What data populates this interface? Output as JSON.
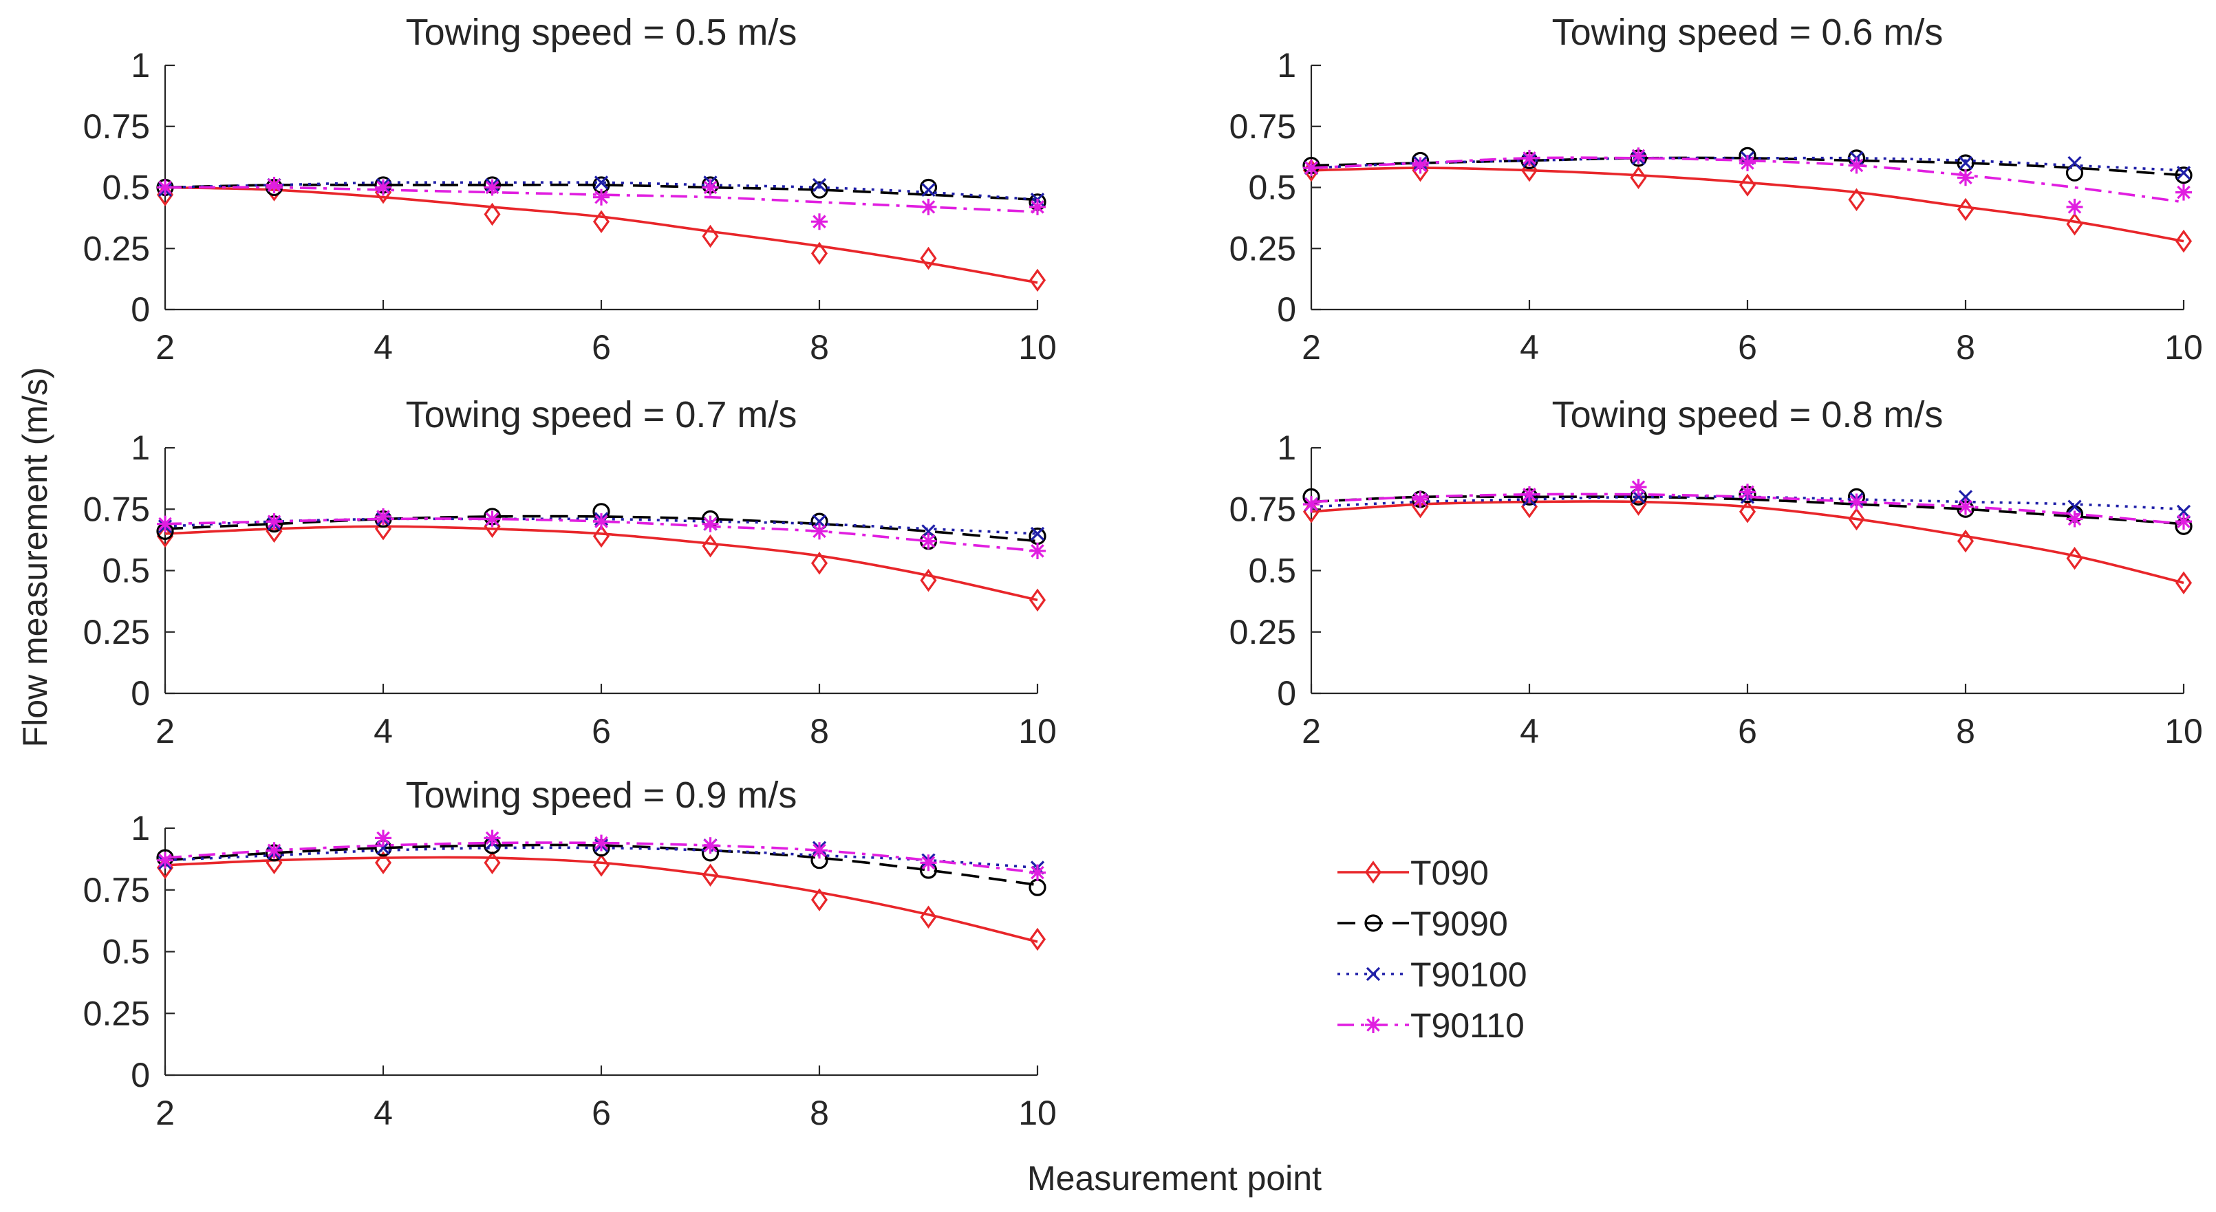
{
  "figure": {
    "ylabel": "Flow measurement (m/s)",
    "xlabel": "Measurement point"
  },
  "series_styles": [
    {
      "name": "T090",
      "color": "#e8262a",
      "dash": "",
      "marker": "diamond"
    },
    {
      "name": "T9090",
      "color": "#000000",
      "dash": "26 14",
      "marker": "circle"
    },
    {
      "name": "T90100",
      "color": "#1f1fa8",
      "dash": "4 9",
      "marker": "x"
    },
    {
      "name": "T90110",
      "color": "#e01ee0",
      "dash": "24 10 5 10",
      "marker": "star"
    }
  ],
  "legend": {
    "position": "lower-right",
    "entries": [
      "T090",
      "T9090",
      "T90100",
      "T90110"
    ]
  },
  "chart_data": [
    {
      "type": "line",
      "title": "Towing speed = 0.5 m/s",
      "x": [
        2,
        3,
        4,
        5,
        6,
        7,
        8,
        9,
        10
      ],
      "xlim": [
        2,
        10
      ],
      "ylim": [
        0,
        1
      ],
      "xticks": [
        "2",
        "4",
        "6",
        "8",
        "10"
      ],
      "yticks": [
        "0",
        "0.25",
        "0.5",
        "0.75",
        "1"
      ],
      "series": [
        {
          "name": "T090",
          "values": [
            0.47,
            0.49,
            0.48,
            0.39,
            0.36,
            0.3,
            0.23,
            0.21,
            0.12
          ],
          "fit": [
            0.5,
            0.49,
            0.46,
            0.42,
            0.38,
            0.32,
            0.26,
            0.19,
            0.11
          ]
        },
        {
          "name": "T9090",
          "values": [
            0.5,
            0.5,
            0.51,
            0.51,
            0.51,
            0.51,
            0.49,
            0.5,
            0.44
          ],
          "fit": [
            0.5,
            0.51,
            0.51,
            0.51,
            0.51,
            0.5,
            0.49,
            0.47,
            0.45
          ]
        },
        {
          "name": "T90100",
          "values": [
            0.49,
            0.51,
            0.51,
            0.51,
            0.52,
            0.52,
            0.51,
            0.49,
            0.45
          ],
          "fit": [
            0.5,
            0.51,
            0.52,
            0.52,
            0.52,
            0.51,
            0.5,
            0.48,
            0.45
          ]
        },
        {
          "name": "T90110",
          "values": [
            0.5,
            0.51,
            0.5,
            0.5,
            0.46,
            0.5,
            0.36,
            0.42,
            0.42
          ],
          "fit": [
            0.5,
            0.5,
            0.49,
            0.48,
            0.47,
            0.46,
            0.44,
            0.42,
            0.4
          ]
        }
      ]
    },
    {
      "type": "line",
      "title": "Towing speed = 0.6 m/s",
      "x": [
        2,
        3,
        4,
        5,
        6,
        7,
        8,
        9,
        10
      ],
      "xlim": [
        2,
        10
      ],
      "ylim": [
        0,
        1
      ],
      "xticks": [
        "2",
        "4",
        "6",
        "8",
        "10"
      ],
      "yticks": [
        "0",
        "0.25",
        "0.5",
        "0.75",
        "1"
      ],
      "series": [
        {
          "name": "T090",
          "values": [
            0.57,
            0.57,
            0.57,
            0.54,
            0.51,
            0.45,
            0.41,
            0.35,
            0.28
          ],
          "fit": [
            0.57,
            0.58,
            0.57,
            0.55,
            0.52,
            0.48,
            0.42,
            0.36,
            0.28
          ]
        },
        {
          "name": "T9090",
          "values": [
            0.59,
            0.61,
            0.61,
            0.62,
            0.63,
            0.62,
            0.6,
            0.56,
            0.55
          ],
          "fit": [
            0.59,
            0.6,
            0.61,
            0.62,
            0.62,
            0.61,
            0.6,
            0.58,
            0.55
          ]
        },
        {
          "name": "T90100",
          "values": [
            0.58,
            0.6,
            0.61,
            0.62,
            0.62,
            0.62,
            0.6,
            0.6,
            0.56
          ],
          "fit": [
            0.58,
            0.6,
            0.61,
            0.62,
            0.62,
            0.62,
            0.61,
            0.59,
            0.57
          ]
        },
        {
          "name": "T90110",
          "values": [
            0.58,
            0.59,
            0.62,
            0.63,
            0.6,
            0.59,
            0.54,
            0.42,
            0.48
          ],
          "fit": [
            0.58,
            0.6,
            0.62,
            0.62,
            0.61,
            0.59,
            0.55,
            0.5,
            0.44
          ]
        }
      ]
    },
    {
      "type": "line",
      "title": "Towing speed = 0.7 m/s",
      "x": [
        2,
        3,
        4,
        5,
        6,
        7,
        8,
        9,
        10
      ],
      "xlim": [
        2,
        10
      ],
      "ylim": [
        0,
        1
      ],
      "xticks": [
        "2",
        "4",
        "6",
        "8",
        "10"
      ],
      "yticks": [
        "0",
        "0.25",
        "0.5",
        "0.75",
        "1"
      ],
      "series": [
        {
          "name": "T090",
          "values": [
            0.64,
            0.66,
            0.67,
            0.68,
            0.64,
            0.6,
            0.53,
            0.46,
            0.38
          ],
          "fit": [
            0.65,
            0.67,
            0.68,
            0.67,
            0.65,
            0.61,
            0.56,
            0.48,
            0.38
          ]
        },
        {
          "name": "T9090",
          "values": [
            0.66,
            0.69,
            0.71,
            0.72,
            0.74,
            0.71,
            0.7,
            0.62,
            0.64
          ],
          "fit": [
            0.67,
            0.69,
            0.71,
            0.72,
            0.72,
            0.71,
            0.69,
            0.66,
            0.62
          ]
        },
        {
          "name": "T90100",
          "values": [
            0.68,
            0.69,
            0.71,
            0.71,
            0.71,
            0.69,
            0.7,
            0.66,
            0.65
          ],
          "fit": [
            0.68,
            0.7,
            0.71,
            0.71,
            0.71,
            0.7,
            0.69,
            0.67,
            0.65
          ]
        },
        {
          "name": "T90110",
          "values": [
            0.69,
            0.7,
            0.72,
            0.71,
            0.7,
            0.69,
            0.66,
            0.62,
            0.58
          ],
          "fit": [
            0.69,
            0.7,
            0.71,
            0.71,
            0.7,
            0.68,
            0.66,
            0.62,
            0.58
          ]
        }
      ]
    },
    {
      "type": "line",
      "title": "Towing speed = 0.8 m/s",
      "x": [
        2,
        3,
        4,
        5,
        6,
        7,
        8,
        9,
        10
      ],
      "xlim": [
        2,
        10
      ],
      "ylim": [
        0,
        1
      ],
      "xticks": [
        "2",
        "4",
        "6",
        "8",
        "10"
      ],
      "yticks": [
        "0",
        "0.25",
        "0.5",
        "0.75",
        "1"
      ],
      "series": [
        {
          "name": "T090",
          "values": [
            0.74,
            0.76,
            0.76,
            0.77,
            0.74,
            0.71,
            0.62,
            0.55,
            0.45
          ],
          "fit": [
            0.74,
            0.77,
            0.78,
            0.78,
            0.76,
            0.71,
            0.64,
            0.56,
            0.45
          ]
        },
        {
          "name": "T9090",
          "values": [
            0.8,
            0.79,
            0.8,
            0.8,
            0.81,
            0.8,
            0.75,
            0.73,
            0.68
          ],
          "fit": [
            0.78,
            0.8,
            0.8,
            0.8,
            0.79,
            0.77,
            0.75,
            0.72,
            0.69
          ]
        },
        {
          "name": "T90100",
          "values": [
            0.77,
            0.79,
            0.79,
            0.8,
            0.8,
            0.79,
            0.8,
            0.76,
            0.74
          ],
          "fit": [
            0.76,
            0.78,
            0.79,
            0.8,
            0.8,
            0.79,
            0.78,
            0.77,
            0.75
          ]
        },
        {
          "name": "T90110",
          "values": [
            0.77,
            0.79,
            0.81,
            0.84,
            0.82,
            0.78,
            0.76,
            0.71,
            0.7
          ],
          "fit": [
            0.78,
            0.8,
            0.81,
            0.81,
            0.8,
            0.78,
            0.76,
            0.73,
            0.69
          ]
        }
      ]
    },
    {
      "type": "line",
      "title": "Towing speed = 0.9 m/s",
      "x": [
        2,
        3,
        4,
        5,
        6,
        7,
        8,
        9,
        10
      ],
      "xlim": [
        2,
        10
      ],
      "ylim": [
        0,
        1
      ],
      "xticks": [
        "2",
        "4",
        "6",
        "8",
        "10"
      ],
      "yticks": [
        "0",
        "0.25",
        "0.5",
        "0.75",
        "1"
      ],
      "series": [
        {
          "name": "T090",
          "values": [
            0.84,
            0.86,
            0.86,
            0.86,
            0.85,
            0.81,
            0.71,
            0.64,
            0.55
          ],
          "fit": [
            0.85,
            0.87,
            0.88,
            0.88,
            0.86,
            0.81,
            0.74,
            0.65,
            0.54
          ]
        },
        {
          "name": "T9090",
          "values": [
            0.88,
            0.9,
            0.92,
            0.93,
            0.92,
            0.9,
            0.87,
            0.83,
            0.76
          ],
          "fit": [
            0.87,
            0.9,
            0.92,
            0.93,
            0.93,
            0.91,
            0.88,
            0.83,
            0.77
          ]
        },
        {
          "name": "T90100",
          "values": [
            0.86,
            0.9,
            0.92,
            0.94,
            0.93,
            0.93,
            0.92,
            0.87,
            0.84
          ],
          "fit": [
            0.87,
            0.89,
            0.91,
            0.92,
            0.92,
            0.91,
            0.89,
            0.87,
            0.84
          ]
        },
        {
          "name": "T90110",
          "values": [
            0.87,
            0.91,
            0.96,
            0.96,
            0.94,
            0.93,
            0.91,
            0.86,
            0.82
          ],
          "fit": [
            0.88,
            0.91,
            0.93,
            0.94,
            0.94,
            0.93,
            0.91,
            0.87,
            0.82
          ]
        }
      ]
    }
  ]
}
